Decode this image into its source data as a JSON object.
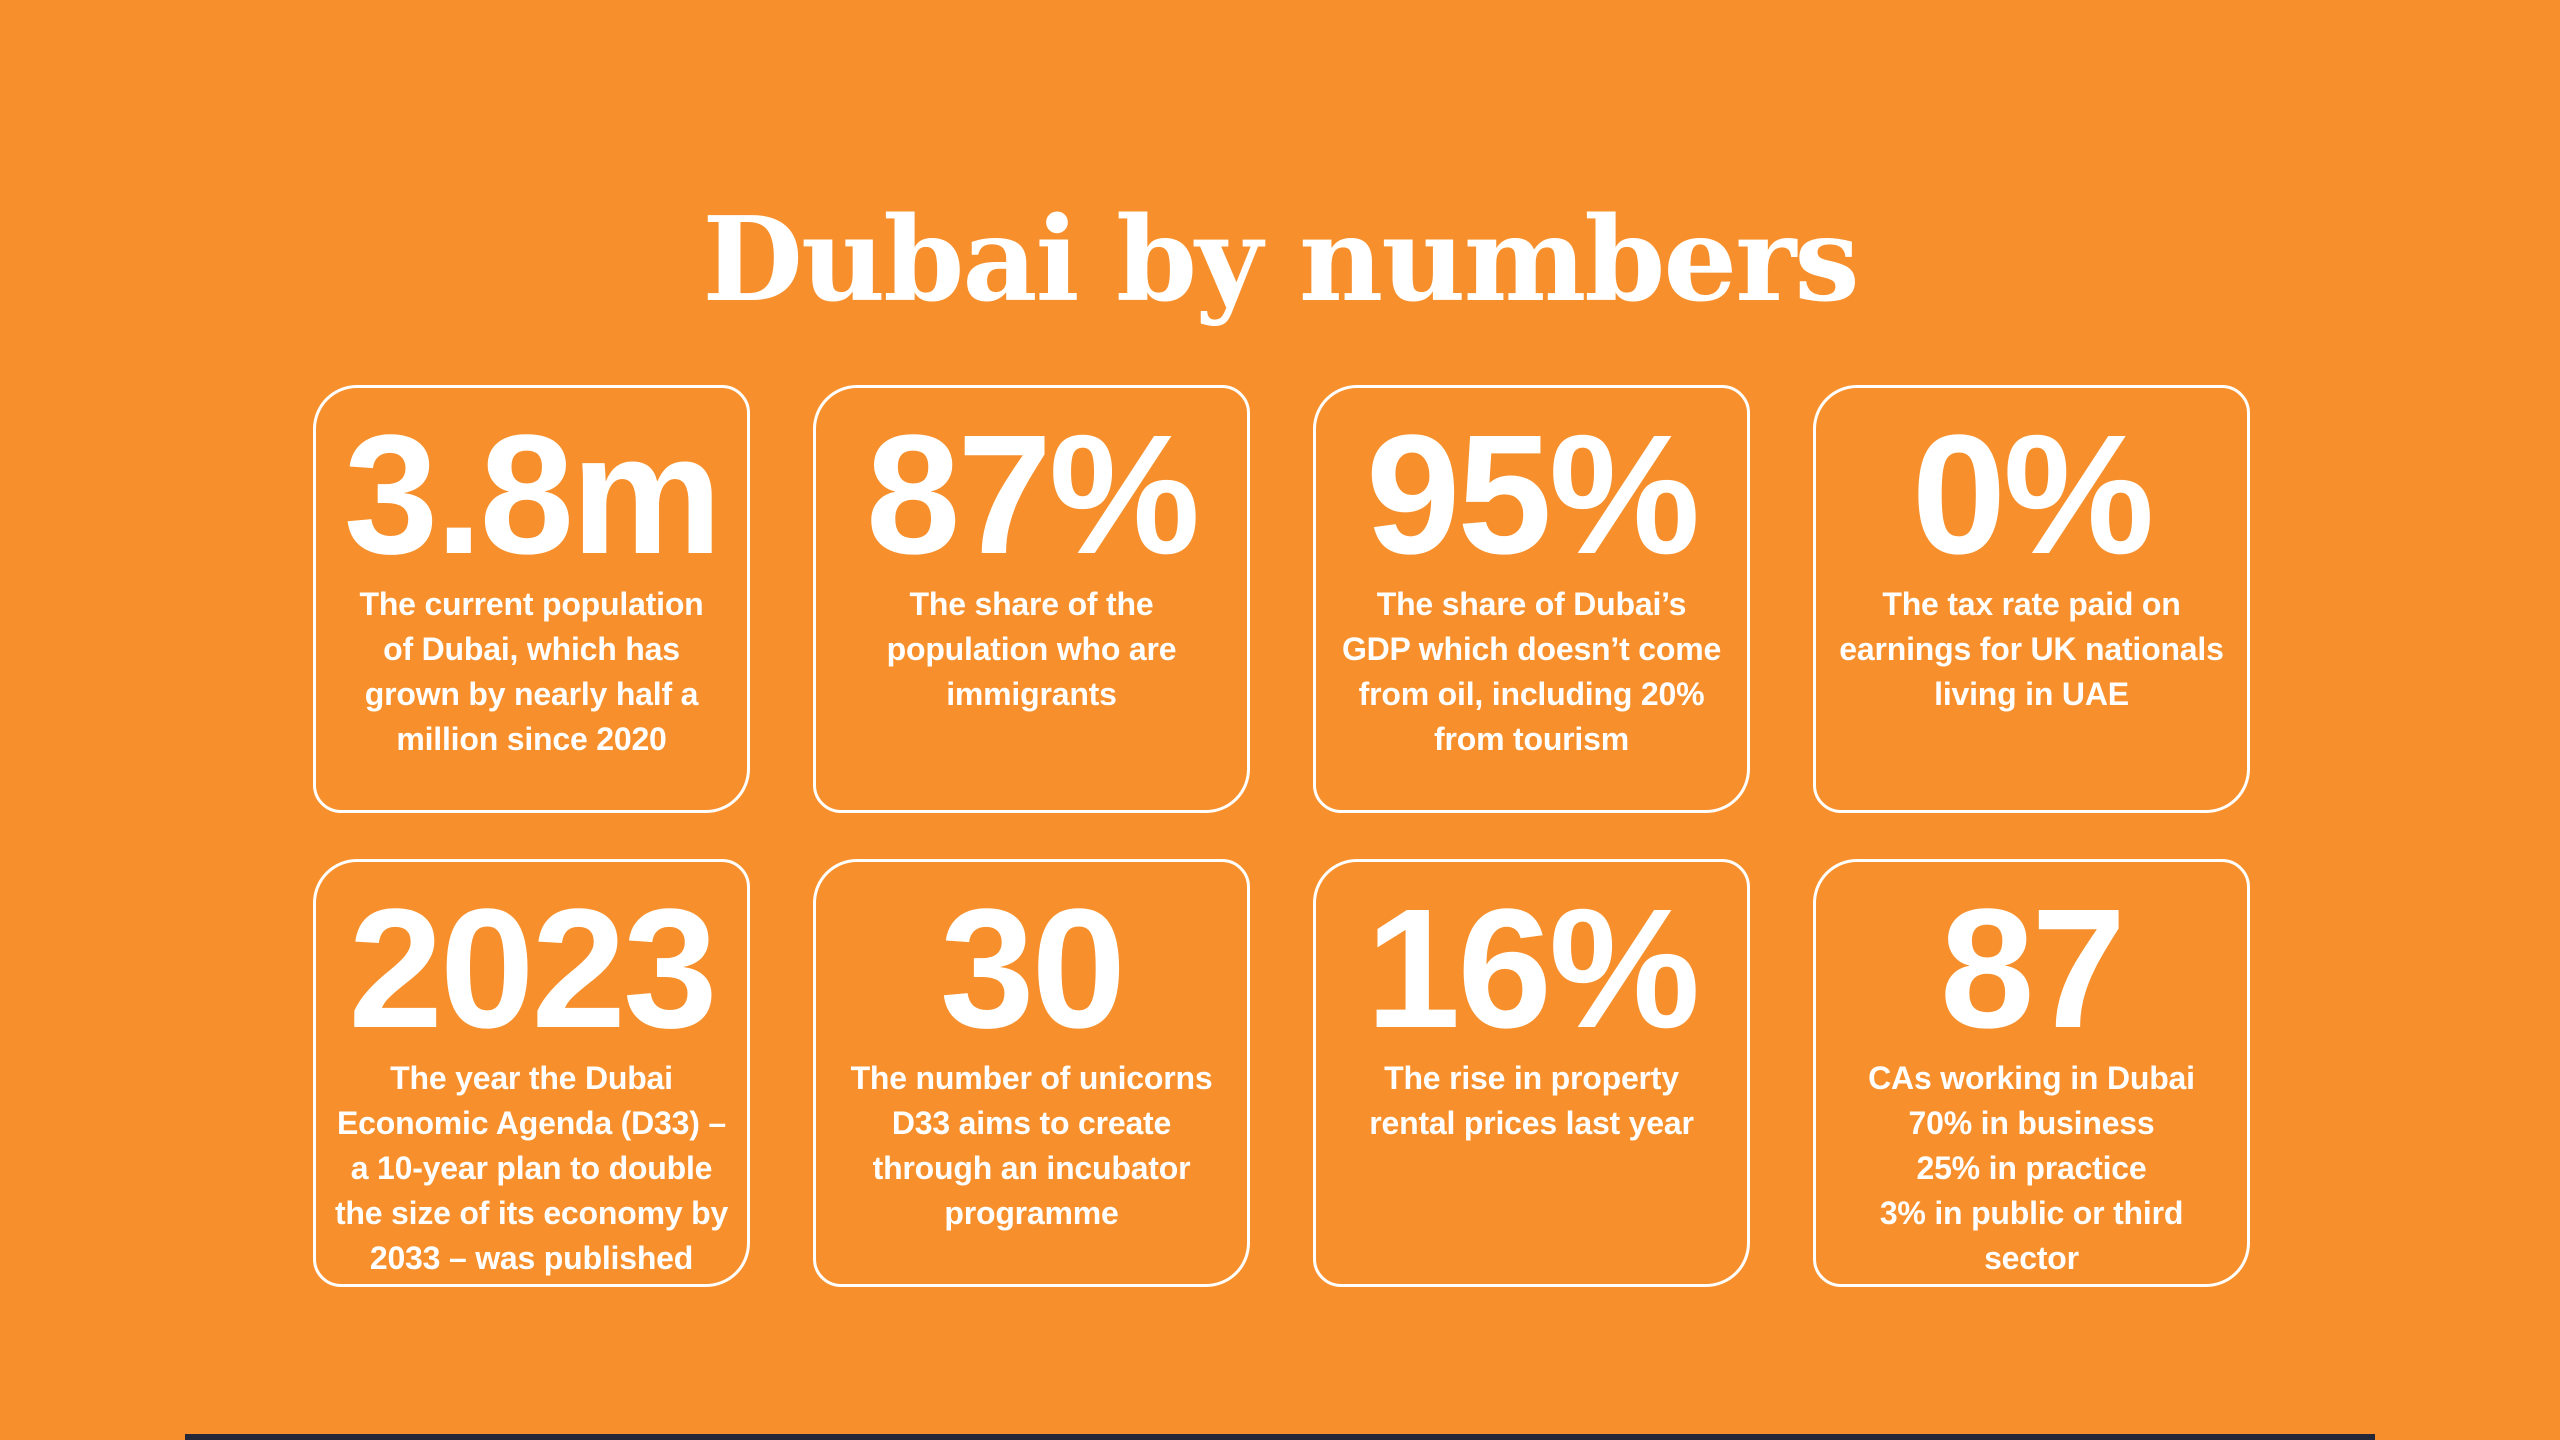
{
  "title": "Dubai by numbers",
  "colors": {
    "background": "#F7902C",
    "text": "#FFFFFF",
    "card_border": "#FFFFFF",
    "bottom_bar": "#232737"
  },
  "cards": [
    {
      "value": "3.8m",
      "description": [
        "The current population",
        "of Dubai, which has",
        "grown by nearly half a",
        "million since 2020"
      ]
    },
    {
      "value": "87%",
      "description": [
        "The share of the",
        "population who are",
        "immigrants"
      ]
    },
    {
      "value": "95%",
      "description": [
        "The share of Dubai’s",
        "GDP which doesn’t come",
        "from oil, including 20%",
        "from tourism"
      ]
    },
    {
      "value": "0%",
      "description": [
        "The tax rate paid on",
        "earnings for UK nationals",
        "living in UAE"
      ]
    },
    {
      "value": "2023",
      "description": [
        "The year the Dubai",
        "Economic Agenda (D33) –",
        "a 10-year plan to double",
        "the size of its economy by",
        "2033 – was published"
      ]
    },
    {
      "value": "30",
      "description": [
        "The number of unicorns",
        "D33 aims to create",
        "through an incubator",
        "programme"
      ]
    },
    {
      "value": "16%",
      "description": [
        "The rise in property",
        "rental prices last year"
      ]
    },
    {
      "value": "87",
      "description": [
        "CAs working in Dubai",
        "70% in business",
        "25% in practice",
        "3% in public or third sector"
      ]
    }
  ],
  "chart_data": {
    "type": "table",
    "title": "Dubai by numbers",
    "categories": [
      "Current population of Dubai (grown by nearly half a million since 2020)",
      "Share of the population who are immigrants",
      "Share of Dubai’s GDP which doesn’t come from oil (including 20% from tourism)",
      "Tax rate paid on earnings for UK nationals living in UAE",
      "Year the Dubai Economic Agenda (D33) – a 10-year plan to double the size of its economy by 2033 – was published",
      "Number of unicorns D33 aims to create through an incubator programme",
      "Rise in property rental prices last year",
      "CAs working in Dubai (70% in business, 25% in practice, 3% in public or third sector)"
    ],
    "values": [
      "3.8m",
      "87%",
      "95%",
      "0%",
      "2023",
      "30",
      "16%",
      "87"
    ],
    "layout": "2 rows × 4 columns of stat cards, title centered above"
  }
}
